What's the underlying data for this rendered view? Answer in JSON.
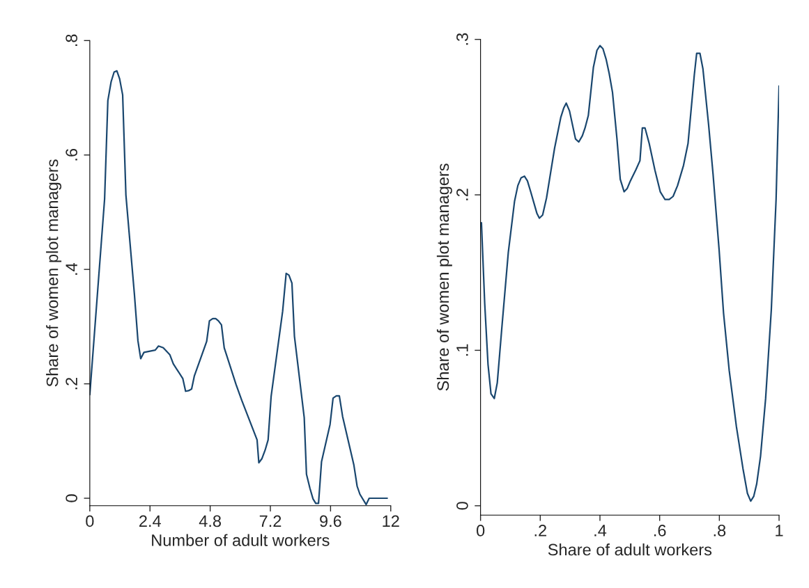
{
  "chart_data": [
    {
      "type": "line",
      "xlabel": "Number of adult workers",
      "ylabel": "Share of women plot managers",
      "color": "#1a476f",
      "x": [
        0.0,
        0.59,
        0.72,
        0.85,
        0.97,
        1.08,
        1.19,
        1.31,
        1.44,
        1.78,
        1.92,
        2.03,
        2.16,
        2.61,
        2.74,
        2.93,
        3.19,
        3.33,
        3.71,
        3.82,
        3.94,
        4.06,
        4.17,
        4.66,
        4.77,
        4.9,
        5.02,
        5.13,
        5.25,
        5.36,
        5.83,
        6.06,
        6.67,
        6.74,
        6.86,
        6.99,
        7.11,
        7.23,
        7.69,
        7.83,
        7.94,
        8.06,
        8.16,
        8.55,
        8.64,
        8.78,
        8.9,
        9.01,
        9.12,
        9.24,
        9.58,
        9.7,
        9.83,
        9.95,
        10.08,
        10.53,
        10.66,
        10.77,
        11.02,
        11.14,
        11.86
      ],
      "values": [
        0.181,
        0.523,
        0.695,
        0.728,
        0.745,
        0.747,
        0.733,
        0.705,
        0.53,
        0.356,
        0.275,
        0.244,
        0.255,
        0.259,
        0.266,
        0.263,
        0.251,
        0.235,
        0.209,
        0.187,
        0.188,
        0.191,
        0.214,
        0.274,
        0.31,
        0.314,
        0.314,
        0.31,
        0.303,
        0.263,
        0.199,
        0.171,
        0.102,
        0.062,
        0.069,
        0.084,
        0.102,
        0.178,
        0.327,
        0.393,
        0.39,
        0.376,
        0.283,
        0.141,
        0.042,
        0.017,
        -0.001,
        -0.009,
        -0.009,
        0.064,
        0.129,
        0.175,
        0.179,
        0.179,
        0.143,
        0.058,
        0.021,
        0.007,
        -0.011,
        0.0,
        0.0
      ],
      "xlim": [
        0,
        12
      ],
      "ylim": [
        -0.013,
        0.8
      ],
      "xticks": [
        0,
        2.4,
        4.8,
        7.2,
        9.6,
        12
      ],
      "yticks": [
        0,
        {
          "value": 0.2,
          "label": ".2"
        },
        {
          "value": 0.4,
          "label": ".4"
        },
        {
          "value": 0.6,
          "label": ".6"
        },
        {
          "value": 0.8,
          "label": ".8"
        }
      ]
    },
    {
      "type": "line",
      "xlabel": "Share of adult workers",
      "ylabel": "Share of women plot managers",
      "color": "#1a476f",
      "x": [
        0.003,
        0.014,
        0.025,
        0.035,
        0.046,
        0.056,
        0.072,
        0.093,
        0.114,
        0.125,
        0.136,
        0.147,
        0.157,
        0.168,
        0.189,
        0.197,
        0.208,
        0.221,
        0.248,
        0.269,
        0.279,
        0.287,
        0.298,
        0.318,
        0.329,
        0.341,
        0.35,
        0.361,
        0.378,
        0.39,
        0.4,
        0.41,
        0.421,
        0.431,
        0.442,
        0.457,
        0.468,
        0.481,
        0.491,
        0.502,
        0.52,
        0.534,
        0.542,
        0.551,
        0.565,
        0.584,
        0.602,
        0.618,
        0.632,
        0.645,
        0.66,
        0.68,
        0.695,
        0.716,
        0.724,
        0.735,
        0.745,
        0.764,
        0.779,
        0.799,
        0.814,
        0.833,
        0.857,
        0.879,
        0.894,
        0.905,
        0.915,
        0.925,
        0.938,
        0.955,
        0.974,
        0.99,
        1.0
      ],
      "values": [
        0.182,
        0.13,
        0.091,
        0.072,
        0.069,
        0.079,
        0.116,
        0.163,
        0.196,
        0.206,
        0.211,
        0.212,
        0.209,
        0.202,
        0.188,
        0.185,
        0.187,
        0.198,
        0.23,
        0.25,
        0.256,
        0.259,
        0.254,
        0.236,
        0.234,
        0.238,
        0.243,
        0.251,
        0.282,
        0.293,
        0.296,
        0.294,
        0.287,
        0.278,
        0.266,
        0.236,
        0.21,
        0.202,
        0.204,
        0.209,
        0.216,
        0.222,
        0.243,
        0.243,
        0.233,
        0.216,
        0.202,
        0.197,
        0.197,
        0.199,
        0.206,
        0.219,
        0.233,
        0.277,
        0.291,
        0.291,
        0.281,
        0.245,
        0.213,
        0.165,
        0.124,
        0.087,
        0.051,
        0.024,
        0.008,
        0.003,
        0.006,
        0.014,
        0.032,
        0.069,
        0.126,
        0.197,
        0.27
      ],
      "xlim": [
        0,
        1
      ],
      "ylim": [
        -0.006,
        0.3
      ],
      "xticks": [
        0,
        {
          "value": 0.2,
          "label": ".2"
        },
        {
          "value": 0.4,
          "label": ".4"
        },
        {
          "value": 0.6,
          "label": ".6"
        },
        {
          "value": 0.8,
          "label": ".8"
        },
        1
      ],
      "yticks": [
        0,
        {
          "value": 0.1,
          "label": ".1"
        },
        {
          "value": 0.2,
          "label": ".2"
        },
        {
          "value": 0.3,
          "label": ".3"
        }
      ]
    }
  ]
}
